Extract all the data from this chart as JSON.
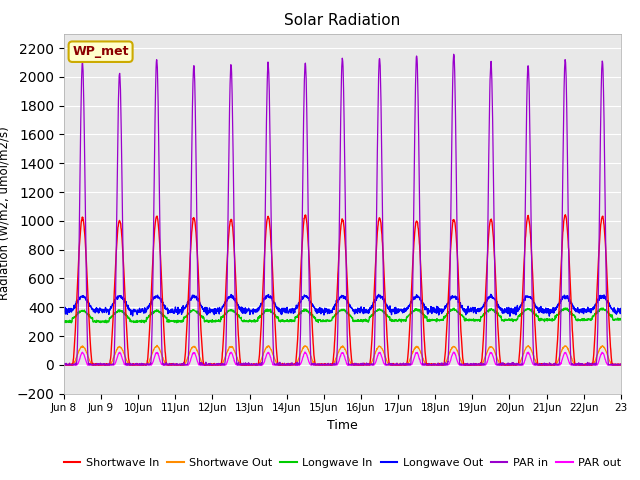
{
  "title": "Solar Radiation",
  "ylabel": "Radiation (W/m2, umol/m2/s)",
  "xlabel": "Time",
  "ylim": [
    -200,
    2300
  ],
  "yticks": [
    -200,
    0,
    200,
    400,
    600,
    800,
    1000,
    1200,
    1400,
    1600,
    1800,
    2000,
    2200
  ],
  "background_color": "#e8e8e8",
  "annotation_text": "WP_met",
  "annotation_color": "#8B0000",
  "annotation_bg": "#ffffcc",
  "n_days": 15,
  "start_day": 8,
  "points_per_day": 144,
  "sw_color": "#ff0000",
  "swout_color": "#ff8c00",
  "lwin_color": "#00cc00",
  "lwout_color": "#0000ff",
  "parin_color": "#9900cc",
  "parout_color": "#ff00ff",
  "xtick_labels": [
    "Jun 8",
    "Jun 9",
    "Jun\n10Jun",
    "11Jun",
    "12Jun",
    "13Jun",
    "14Jun",
    "15Jun",
    "16Jun",
    "17Jun",
    "18Jun",
    "19Jun",
    "20Jun",
    "21Jun",
    "22Jun",
    "23"
  ]
}
